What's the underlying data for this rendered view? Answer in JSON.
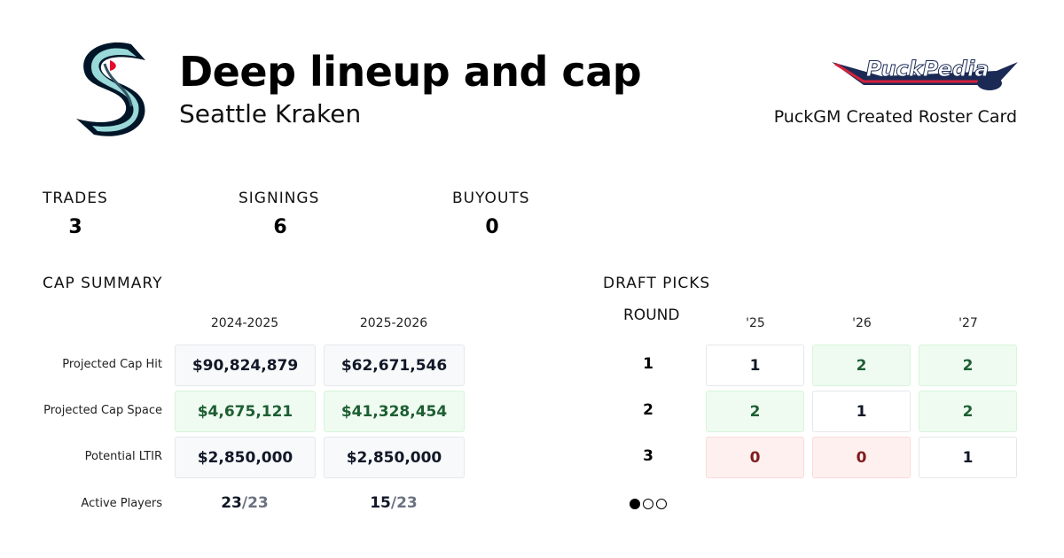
{
  "header": {
    "title": "Deep lineup and cap",
    "team": "Seattle Kraken",
    "credit": "PuckGM Created Roster Card",
    "team_logo": "seattle-kraken-s-logo",
    "site_logo_text": "PuckPedia"
  },
  "stats": [
    {
      "label": "TRADES",
      "value": "3"
    },
    {
      "label": "SIGNINGS",
      "value": "6"
    },
    {
      "label": "BUYOUTS",
      "value": "0"
    }
  ],
  "cap_summary": {
    "title": "CAP SUMMARY",
    "seasons": [
      "2024-2025",
      "2025-2026"
    ],
    "rows": [
      {
        "label": "Projected Cap Hit",
        "values": [
          "$90,824,879",
          "$62,671,546"
        ],
        "tone": "neutral"
      },
      {
        "label": "Projected Cap Space",
        "values": [
          "$4,675,121",
          "$41,328,454"
        ],
        "tone": "positive"
      },
      {
        "label": "Potential LTIR",
        "values": [
          "$2,850,000",
          "$2,850,000"
        ],
        "tone": "neutral"
      }
    ],
    "active_players": {
      "label": "Active Players",
      "values": [
        {
          "count": "23",
          "max": "/23"
        },
        {
          "count": "15",
          "max": "/23"
        }
      ]
    }
  },
  "draft_picks": {
    "title": "DRAFT PICKS",
    "round_label": "ROUND",
    "years": [
      "'25",
      "'26",
      "'27"
    ],
    "rounds": [
      {
        "round": "1",
        "picks": [
          {
            "v": "1",
            "tone": "white"
          },
          {
            "v": "2",
            "tone": "green"
          },
          {
            "v": "2",
            "tone": "green"
          }
        ]
      },
      {
        "round": "2",
        "picks": [
          {
            "v": "2",
            "tone": "green"
          },
          {
            "v": "1",
            "tone": "white"
          },
          {
            "v": "2",
            "tone": "green"
          }
        ]
      },
      {
        "round": "3",
        "picks": [
          {
            "v": "0",
            "tone": "red"
          },
          {
            "v": "0",
            "tone": "red"
          },
          {
            "v": "1",
            "tone": "white"
          }
        ]
      }
    ],
    "pagination": {
      "pages": 3,
      "current": 1
    }
  }
}
